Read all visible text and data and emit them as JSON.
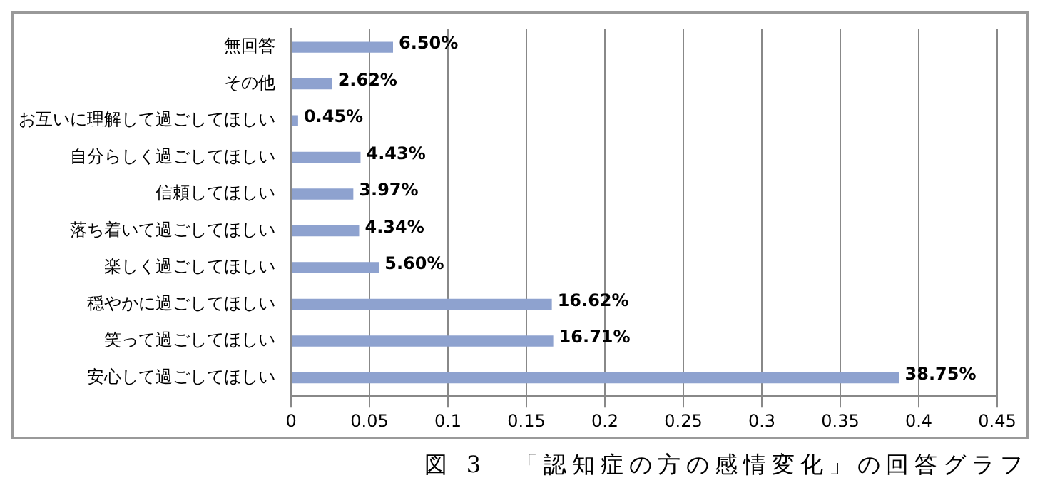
{
  "chart_data": {
    "type": "bar",
    "orientation": "horizontal",
    "categories": [
      "無回答",
      "その他",
      "お互いに理解して過ごしてほしい",
      "自分らしく過ごしてほしい",
      "信頼してほしい",
      "落ち着いて過ごしてほしい",
      "楽しく過ごしてほしい",
      "穏やかに過ごしてほしい",
      "笑って過ごしてほしい",
      "安心して過ごしてほしい"
    ],
    "values": [
      0.065,
      0.0262,
      0.0045,
      0.0443,
      0.0397,
      0.0434,
      0.056,
      0.1662,
      0.1671,
      0.3875
    ],
    "value_labels": [
      "6.50%",
      "2.62%",
      "0.45%",
      "4.43%",
      "3.97%",
      "4.34%",
      "5.60%",
      "16.62%",
      "16.71%",
      "38.75%"
    ],
    "color": "#8ea2cf",
    "xlim": [
      0,
      0.45
    ],
    "xticks": [
      0,
      0.05,
      0.1,
      0.15,
      0.2,
      0.25,
      0.3,
      0.35,
      0.4,
      0.45
    ],
    "grid": "x",
    "legend": false,
    "annotations": [
      "図 3　「認知症の方の感情変化」の回答グラフ"
    ]
  }
}
